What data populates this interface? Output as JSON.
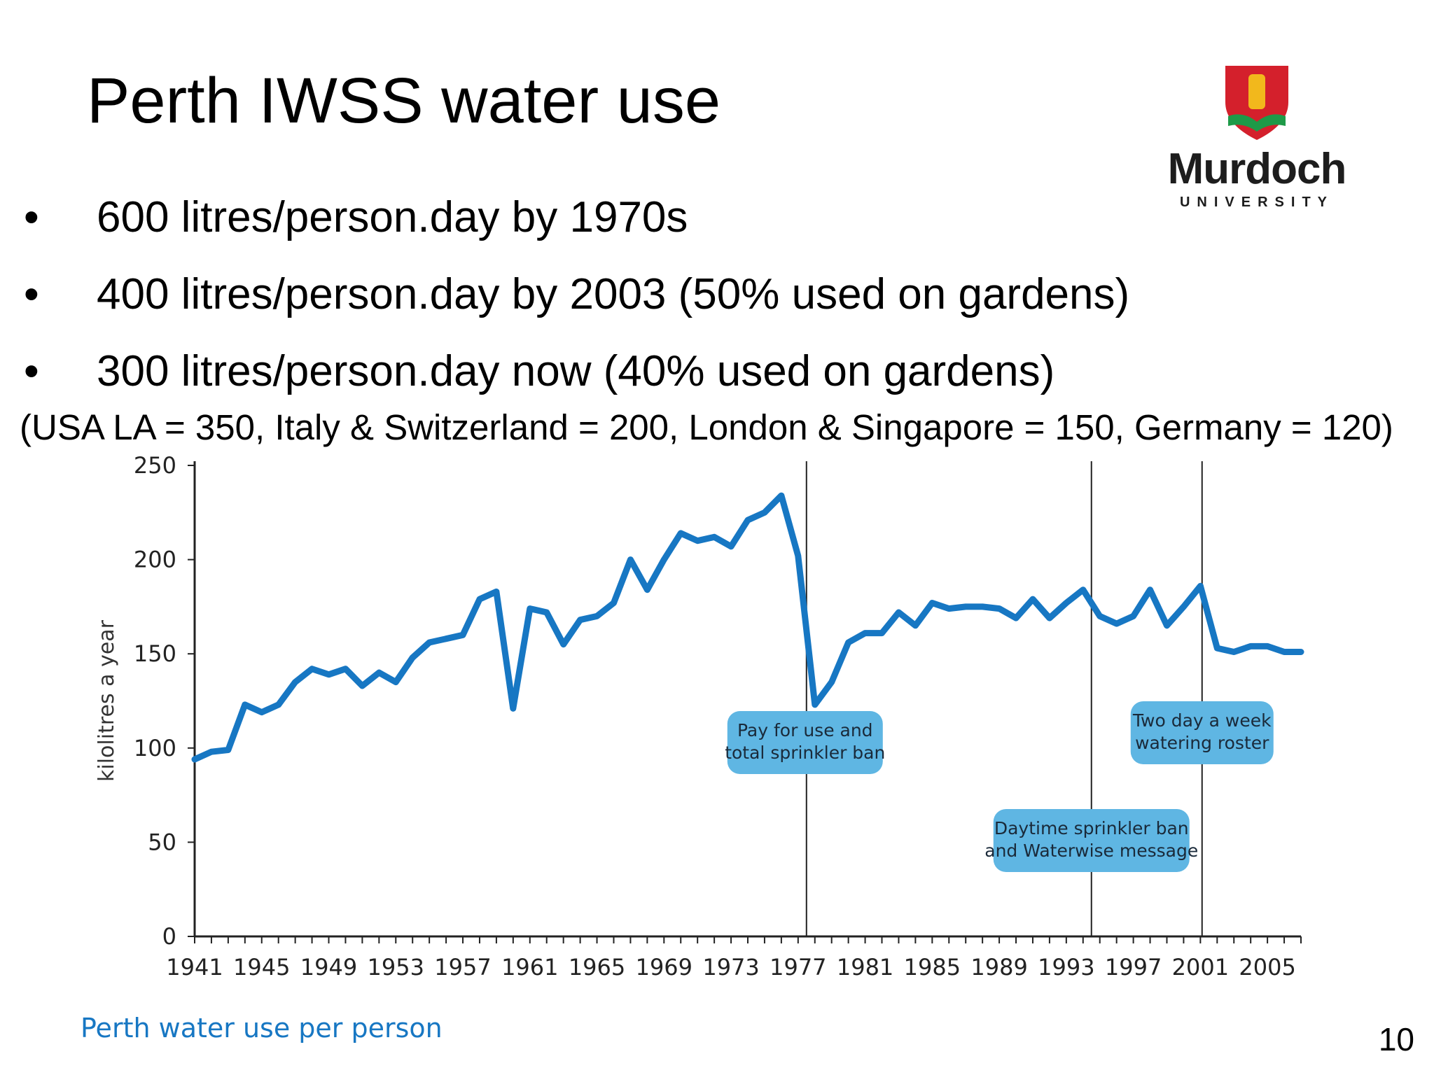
{
  "slide": {
    "title": "Perth IWSS water use",
    "bullet_symbol": "•",
    "bullets": [
      "600 litres/person.day by 1970s",
      "400 litres/person.day by 2003 (50% used on gardens)",
      "300 litres/person.day now (40% used on gardens)"
    ],
    "comparison": "(USA LA = 350, Italy & Switzerland = 200, London & Singapore = 150, Germany = 120)",
    "page_number": "10"
  },
  "logo": {
    "name": "Murdoch",
    "subtitle": "UNIVERSITY",
    "colors": {
      "red": "#d4202c",
      "gold": "#f2b81c",
      "green": "#1e9a48"
    }
  },
  "colors": {
    "line": "#1777c3",
    "callout_fill": "#5fb6e3",
    "axis": "#222222",
    "marker": "#222222"
  },
  "chart_data": {
    "type": "line",
    "caption": "Perth water use per person",
    "ylabel": "kilolitres a year",
    "xlabel": "",
    "ylim": [
      0,
      250
    ],
    "yticks": [
      0,
      50,
      100,
      150,
      200,
      250
    ],
    "xlim": [
      1941,
      2007
    ],
    "xticks": [
      1941,
      1945,
      1949,
      1953,
      1957,
      1961,
      1965,
      1969,
      1973,
      1977,
      1981,
      1985,
      1989,
      1993,
      1997,
      2001,
      2005
    ],
    "grid": false,
    "x": [
      1941,
      1942,
      1943,
      1944,
      1945,
      1946,
      1947,
      1948,
      1949,
      1950,
      1951,
      1952,
      1953,
      1954,
      1955,
      1956,
      1957,
      1958,
      1959,
      1960,
      1961,
      1962,
      1963,
      1964,
      1965,
      1966,
      1967,
      1968,
      1969,
      1970,
      1971,
      1972,
      1973,
      1974,
      1975,
      1976,
      1977,
      1978,
      1979,
      1980,
      1981,
      1982,
      1983,
      1984,
      1985,
      1986,
      1987,
      1988,
      1989,
      1990,
      1991,
      1992,
      1993,
      1994,
      1995,
      1996,
      1997,
      1998,
      1999,
      2000,
      2001,
      2002,
      2003,
      2004,
      2005,
      2006,
      2007
    ],
    "y": [
      94,
      98,
      99,
      123,
      119,
      123,
      135,
      142,
      139,
      142,
      133,
      140,
      135,
      148,
      156,
      158,
      160,
      179,
      183,
      121,
      174,
      172,
      155,
      168,
      170,
      177,
      200,
      184,
      200,
      214,
      210,
      212,
      207,
      221,
      225,
      234,
      202,
      123,
      135,
      156,
      161,
      161,
      172,
      165,
      177,
      174,
      175,
      175,
      174,
      169,
      179,
      169,
      177,
      184,
      170,
      166,
      170,
      184,
      165,
      175,
      186,
      153,
      151,
      154,
      154,
      151,
      151
    ],
    "events": [
      {
        "year": 1977.5,
        "label_lines": [
          "Pay for use and",
          "total sprinkler ban"
        ]
      },
      {
        "year": 1994.5,
        "label_lines": [
          "Daytime sprinkler ban",
          "and Waterwise message"
        ]
      },
      {
        "year": 2001.1,
        "label_lines": [
          "Two day a week",
          "watering roster"
        ]
      }
    ]
  }
}
